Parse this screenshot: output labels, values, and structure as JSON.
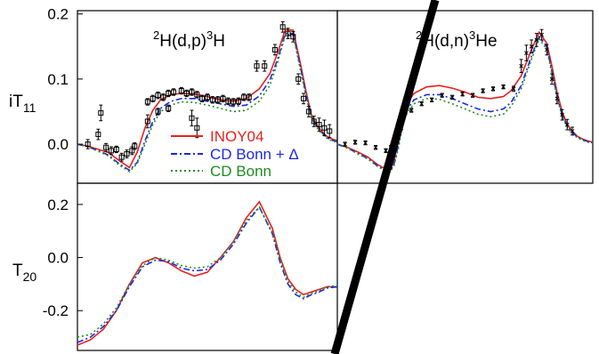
{
  "chart_data": [
    {
      "type": "line",
      "panel": "top-left",
      "reaction_label": {
        "pre_sup": "2",
        "mid": "H(d,p)",
        "post_sup": "3",
        "end": "H"
      },
      "ylabel": {
        "main": "iT",
        "sub": "11"
      },
      "ylim": [
        -0.06,
        0.205
      ],
      "xlim": [
        0,
        100
      ],
      "yticks": [
        {
          "v": 0.2,
          "label": "0.2"
        },
        {
          "v": 0.1,
          "label": "0.1"
        },
        {
          "v": 0.0,
          "label": "0.0"
        }
      ],
      "legend": [
        {
          "name": "INOY04",
          "color": "#e8201e",
          "dash": "solid"
        },
        {
          "name": "CD Bonn + Δ",
          "color": "#1d28e0",
          "dash": "dashdot"
        },
        {
          "name": "CD Bonn",
          "color": "#1e8c1e",
          "dash": "dotted"
        }
      ],
      "legend_position": "center",
      "series": [
        {
          "name": "INOY04",
          "color": "#e8201e",
          "dash": "solid",
          "x": [
            0,
            4,
            8,
            12,
            16,
            20,
            23,
            26,
            29,
            32,
            36,
            40,
            45,
            50,
            55,
            60,
            65,
            70,
            74,
            77,
            80,
            83,
            86,
            88,
            90,
            92,
            94,
            96,
            98,
            100
          ],
          "y": [
            0.0,
            -0.003,
            -0.008,
            -0.013,
            -0.025,
            -0.036,
            -0.012,
            0.025,
            0.052,
            0.068,
            0.076,
            0.078,
            0.077,
            0.073,
            0.068,
            0.066,
            0.07,
            0.085,
            0.108,
            0.14,
            0.176,
            0.175,
            0.12,
            0.08,
            0.045,
            0.03,
            0.02,
            0.012,
            0.008,
            0.005
          ]
        },
        {
          "name": "CD Bonn + Δ",
          "color": "#1d28e0",
          "dash": "dashdot",
          "x": [
            0,
            4,
            8,
            12,
            16,
            20,
            23,
            26,
            29,
            32,
            36,
            40,
            45,
            50,
            55,
            60,
            65,
            70,
            74,
            77,
            80,
            83,
            86,
            88,
            90,
            92,
            94,
            96,
            98,
            100
          ],
          "y": [
            0.0,
            -0.004,
            -0.01,
            -0.017,
            -0.03,
            -0.04,
            -0.028,
            0.005,
            0.035,
            0.055,
            0.066,
            0.07,
            0.07,
            0.066,
            0.062,
            0.058,
            0.06,
            0.074,
            0.098,
            0.13,
            0.17,
            0.17,
            0.115,
            0.075,
            0.042,
            0.028,
            0.018,
            0.01,
            0.006,
            0.004
          ]
        },
        {
          "name": "CD Bonn",
          "color": "#1e8c1e",
          "dash": "dotted",
          "x": [
            0,
            4,
            8,
            12,
            16,
            20,
            23,
            26,
            29,
            32,
            36,
            40,
            45,
            50,
            55,
            60,
            65,
            70,
            74,
            77,
            80,
            83,
            86,
            88,
            90,
            92,
            94,
            96,
            98,
            100
          ],
          "y": [
            0.0,
            -0.004,
            -0.011,
            -0.018,
            -0.032,
            -0.042,
            -0.03,
            0.0,
            0.03,
            0.05,
            0.06,
            0.065,
            0.064,
            0.06,
            0.055,
            0.05,
            0.052,
            0.066,
            0.09,
            0.125,
            0.168,
            0.168,
            0.11,
            0.072,
            0.04,
            0.026,
            0.016,
            0.009,
            0.005,
            0.003
          ]
        }
      ],
      "points": [
        {
          "x": 4,
          "y": 0.0,
          "e": 0.007
        },
        {
          "x": 8,
          "y": 0.015,
          "e": 0.008
        },
        {
          "x": 11,
          "y": -0.005,
          "e": 0.006
        },
        {
          "x": 13,
          "y": -0.01,
          "e": 0.006
        },
        {
          "x": 15,
          "y": -0.008,
          "e": 0.005
        },
        {
          "x": 17,
          "y": -0.02,
          "e": 0.006
        },
        {
          "x": 19,
          "y": -0.015,
          "e": 0.006
        },
        {
          "x": 21,
          "y": -0.01,
          "e": 0.006
        },
        {
          "x": 22,
          "y": -0.003,
          "e": 0.005
        },
        {
          "x": 27,
          "y": 0.065,
          "e": 0.005
        },
        {
          "x": 29,
          "y": 0.07,
          "e": 0.005
        },
        {
          "x": 31,
          "y": 0.075,
          "e": 0.005
        },
        {
          "x": 33,
          "y": 0.072,
          "e": 0.005
        },
        {
          "x": 35,
          "y": 0.078,
          "e": 0.005
        },
        {
          "x": 37,
          "y": 0.08,
          "e": 0.005
        },
        {
          "x": 40,
          "y": 0.082,
          "e": 0.005
        },
        {
          "x": 42,
          "y": 0.078,
          "e": 0.005
        },
        {
          "x": 44,
          "y": 0.08,
          "e": 0.005
        },
        {
          "x": 46,
          "y": 0.076,
          "e": 0.005
        },
        {
          "x": 48,
          "y": 0.07,
          "e": 0.005
        },
        {
          "x": 50,
          "y": 0.072,
          "e": 0.005
        },
        {
          "x": 52,
          "y": 0.068,
          "e": 0.005
        },
        {
          "x": 54,
          "y": 0.068,
          "e": 0.005
        },
        {
          "x": 56,
          "y": 0.07,
          "e": 0.005
        },
        {
          "x": 58,
          "y": 0.066,
          "e": 0.005
        },
        {
          "x": 60,
          "y": 0.065,
          "e": 0.005
        },
        {
          "x": 62,
          "y": 0.066,
          "e": 0.005
        },
        {
          "x": 64,
          "y": 0.072,
          "e": 0.005
        },
        {
          "x": 66,
          "y": 0.072,
          "e": 0.005
        },
        {
          "x": 69,
          "y": 0.12,
          "e": 0.008
        },
        {
          "x": 72,
          "y": 0.12,
          "e": 0.008
        },
        {
          "x": 76,
          "y": 0.145,
          "e": 0.008
        },
        {
          "x": 79,
          "y": 0.18,
          "e": 0.008
        },
        {
          "x": 81,
          "y": 0.17,
          "e": 0.008
        },
        {
          "x": 83,
          "y": 0.165,
          "e": 0.008
        },
        {
          "x": 85,
          "y": 0.1,
          "e": 0.008
        },
        {
          "x": 87,
          "y": 0.07,
          "e": 0.008
        },
        {
          "x": 89,
          "y": 0.05,
          "e": 0.008
        },
        {
          "x": 91,
          "y": 0.035,
          "e": 0.008
        },
        {
          "x": 93,
          "y": 0.03,
          "e": 0.01
        },
        {
          "x": 95,
          "y": 0.025,
          "e": 0.012
        },
        {
          "x": 97,
          "y": 0.02,
          "e": 0.01
        }
      ],
      "points_extra": [
        {
          "x": 31,
          "y": 0.05,
          "e": 0.005
        },
        {
          "x": 35,
          "y": 0.055,
          "e": 0.005
        },
        {
          "x": 44,
          "y": 0.04,
          "e": 0.012
        },
        {
          "x": 46,
          "y": 0.025,
          "e": 0.015
        },
        {
          "x": 27,
          "y": 0.035,
          "e": 0.01
        },
        {
          "x": 9,
          "y": 0.048,
          "e": 0.012
        }
      ]
    },
    {
      "type": "line",
      "panel": "top-right",
      "reaction_label": {
        "pre_sup": "2",
        "mid": "H(d,n)",
        "post_sup": "3",
        "end": "He"
      },
      "ylim": [
        -0.06,
        0.205
      ],
      "xlim": [
        0,
        100
      ],
      "series": [
        {
          "name": "INOY04",
          "color": "#e8201e",
          "dash": "solid",
          "x": [
            0,
            4,
            8,
            12,
            16,
            20,
            22,
            24,
            26,
            30,
            35,
            40,
            45,
            50,
            55,
            60,
            65,
            68,
            72,
            76,
            79,
            82,
            84,
            86,
            88,
            90,
            92,
            94,
            96,
            98,
            100
          ],
          "y": [
            0.0,
            -0.005,
            -0.012,
            -0.02,
            -0.032,
            -0.04,
            -0.03,
            0.01,
            0.055,
            0.078,
            0.088,
            0.09,
            0.086,
            0.08,
            0.072,
            0.07,
            0.073,
            0.082,
            0.105,
            0.145,
            0.172,
            0.155,
            0.12,
            0.08,
            0.05,
            0.03,
            0.02,
            0.012,
            0.008,
            0.005,
            0.003
          ]
        },
        {
          "name": "CD Bonn + Δ",
          "color": "#1d28e0",
          "dash": "dashdot",
          "x": [
            0,
            4,
            8,
            12,
            16,
            20,
            22,
            24,
            26,
            30,
            35,
            40,
            45,
            50,
            55,
            60,
            65,
            68,
            72,
            76,
            79,
            82,
            84,
            86,
            88,
            90,
            92,
            94,
            96,
            98,
            100
          ],
          "y": [
            0.0,
            -0.006,
            -0.014,
            -0.022,
            -0.034,
            -0.042,
            -0.034,
            0.0,
            0.045,
            0.068,
            0.076,
            0.076,
            0.07,
            0.062,
            0.054,
            0.05,
            0.054,
            0.064,
            0.09,
            0.135,
            0.165,
            0.15,
            0.112,
            0.075,
            0.045,
            0.028,
            0.018,
            0.011,
            0.007,
            0.004,
            0.002
          ]
        },
        {
          "name": "CD Bonn",
          "color": "#1e8c1e",
          "dash": "dotted",
          "x": [
            0,
            4,
            8,
            12,
            16,
            20,
            22,
            24,
            26,
            30,
            35,
            40,
            45,
            50,
            55,
            60,
            65,
            68,
            72,
            76,
            79,
            82,
            84,
            86,
            88,
            90,
            92,
            94,
            96,
            98,
            100
          ],
          "y": [
            0.0,
            -0.006,
            -0.015,
            -0.023,
            -0.035,
            -0.043,
            -0.036,
            -0.005,
            0.04,
            0.062,
            0.07,
            0.069,
            0.062,
            0.054,
            0.046,
            0.042,
            0.046,
            0.058,
            0.085,
            0.13,
            0.162,
            0.146,
            0.108,
            0.072,
            0.042,
            0.026,
            0.016,
            0.01,
            0.006,
            0.003,
            0.002
          ]
        }
      ],
      "points": [
        {
          "x": 3,
          "y": 0.0,
          "e": 0.003
        },
        {
          "x": 7,
          "y": 0.003,
          "e": 0.003
        },
        {
          "x": 11,
          "y": 0.002,
          "e": 0.003
        },
        {
          "x": 15,
          "y": -0.005,
          "e": 0.003
        },
        {
          "x": 19,
          "y": -0.01,
          "e": 0.003
        },
        {
          "x": 21,
          "y": -0.005,
          "e": 0.003
        },
        {
          "x": 25,
          "y": 0.025,
          "e": 0.003
        },
        {
          "x": 29,
          "y": 0.052,
          "e": 0.003
        },
        {
          "x": 33,
          "y": 0.062,
          "e": 0.003
        },
        {
          "x": 37,
          "y": 0.068,
          "e": 0.003
        },
        {
          "x": 41,
          "y": 0.075,
          "e": 0.003
        },
        {
          "x": 45,
          "y": 0.072,
          "e": 0.003
        },
        {
          "x": 49,
          "y": 0.077,
          "e": 0.003
        },
        {
          "x": 53,
          "y": 0.075,
          "e": 0.003
        },
        {
          "x": 57,
          "y": 0.082,
          "e": 0.003
        },
        {
          "x": 61,
          "y": 0.085,
          "e": 0.003
        },
        {
          "x": 65,
          "y": 0.088,
          "e": 0.003
        },
        {
          "x": 69,
          "y": 0.085,
          "e": 0.004
        },
        {
          "x": 72,
          "y": 0.12,
          "e": 0.01
        },
        {
          "x": 74,
          "y": 0.14,
          "e": 0.012
        },
        {
          "x": 76,
          "y": 0.15,
          "e": 0.01
        },
        {
          "x": 78,
          "y": 0.16,
          "e": 0.01
        },
        {
          "x": 80,
          "y": 0.168,
          "e": 0.008
        },
        {
          "x": 82,
          "y": 0.145,
          "e": 0.008
        },
        {
          "x": 84,
          "y": 0.1,
          "e": 0.008
        },
        {
          "x": 86,
          "y": 0.07,
          "e": 0.008
        },
        {
          "x": 88,
          "y": 0.045,
          "e": 0.008
        },
        {
          "x": 90,
          "y": 0.03,
          "e": 0.008
        },
        {
          "x": 92,
          "y": 0.02,
          "e": 0.006
        }
      ]
    },
    {
      "type": "line",
      "panel": "bottom-left",
      "ylabel": {
        "main": "T",
        "sub": "20"
      },
      "ylim": [
        -0.35,
        0.28
      ],
      "xlim": [
        0,
        100
      ],
      "yticks": [
        {
          "v": 0.2,
          "label": "0.2"
        },
        {
          "v": 0.0,
          "label": "0.0"
        },
        {
          "v": -0.2,
          "label": "-0.2"
        }
      ],
      "series": [
        {
          "name": "INOY04",
          "color": "#e8201e",
          "dash": "solid",
          "x": [
            0,
            5,
            10,
            15,
            20,
            25,
            30,
            35,
            40,
            45,
            50,
            55,
            60,
            65,
            70,
            75,
            78,
            81,
            84,
            87,
            90,
            93,
            96,
            100
          ],
          "y": [
            -0.33,
            -0.31,
            -0.27,
            -0.2,
            -0.1,
            -0.02,
            0.0,
            -0.02,
            -0.05,
            -0.07,
            -0.055,
            0.0,
            0.06,
            0.15,
            0.21,
            0.11,
            0.0,
            -0.08,
            -0.12,
            -0.14,
            -0.13,
            -0.12,
            -0.11,
            -0.11
          ]
        },
        {
          "name": "CD Bonn + Δ",
          "color": "#1d28e0",
          "dash": "dashdot",
          "x": [
            0,
            5,
            10,
            15,
            20,
            25,
            30,
            35,
            40,
            45,
            50,
            55,
            60,
            65,
            70,
            75,
            78,
            81,
            84,
            87,
            90,
            93,
            96,
            100
          ],
          "y": [
            -0.32,
            -0.3,
            -0.26,
            -0.2,
            -0.11,
            -0.035,
            -0.01,
            -0.015,
            -0.04,
            -0.05,
            -0.045,
            -0.01,
            0.05,
            0.13,
            0.19,
            0.09,
            -0.02,
            -0.1,
            -0.14,
            -0.155,
            -0.14,
            -0.13,
            -0.115,
            -0.11
          ]
        },
        {
          "name": "CD Bonn",
          "color": "#1e8c1e",
          "dash": "dotted",
          "x": [
            0,
            5,
            10,
            15,
            20,
            25,
            30,
            35,
            40,
            45,
            50,
            55,
            60,
            65,
            70,
            75,
            78,
            81,
            84,
            87,
            90,
            93,
            96,
            100
          ],
          "y": [
            -0.3,
            -0.29,
            -0.25,
            -0.19,
            -0.1,
            -0.03,
            0.0,
            -0.01,
            -0.03,
            -0.04,
            -0.035,
            0.0,
            0.06,
            0.14,
            0.19,
            0.095,
            -0.01,
            -0.09,
            -0.13,
            -0.15,
            -0.135,
            -0.125,
            -0.11,
            -0.105
          ]
        }
      ]
    }
  ]
}
